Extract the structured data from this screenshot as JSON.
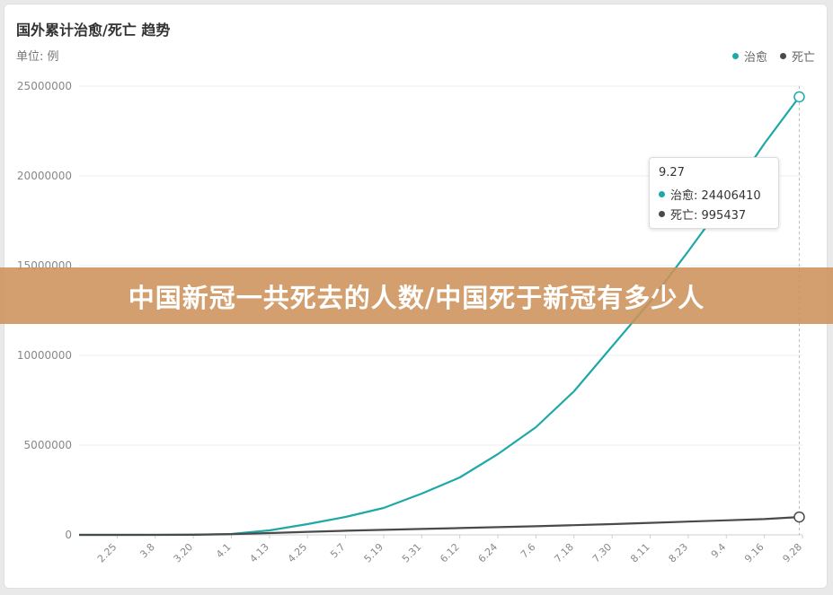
{
  "title": "国外累计治愈/死亡 趋势",
  "unit_label": "单位: 例",
  "banner_text": "中国新冠一共死去的人数/中国死于新冠有多少人",
  "legend": [
    {
      "name": "治愈",
      "color": "#1fa8a8"
    },
    {
      "name": "死亡",
      "color": "#4a4a4a"
    }
  ],
  "tooltip": {
    "date": "9.27",
    "recovered_text": "治愈: 24406410",
    "deaths_text": "死亡: 995437"
  },
  "chart_data": {
    "type": "line",
    "title": "国外累计治愈/死亡 趋势",
    "ylabel": "单位: 例",
    "ylim": [
      0,
      25000000
    ],
    "y_ticks": [
      0,
      5000000,
      10000000,
      15000000,
      20000000,
      25000000
    ],
    "y_tick_labels": [
      "0",
      "5000000",
      "10000000",
      "15000000",
      "20000000",
      "25000000"
    ],
    "x_tick_labels": [
      "2.25",
      "3.8",
      "3.20",
      "4.1",
      "4.13",
      "4.25",
      "5.7",
      "5.19",
      "5.31",
      "6.12",
      "6.24",
      "7.6",
      "7.18",
      "7.30",
      "8.11",
      "8.23",
      "9.4",
      "9.16",
      "9.28"
    ],
    "grid": true,
    "legend_position": "top-right",
    "series": [
      {
        "name": "治愈",
        "color": "#1fa8a8",
        "points": [
          [
            "2.13",
            0
          ],
          [
            "2.25",
            0
          ],
          [
            "3.8",
            2000
          ],
          [
            "3.20",
            12000
          ],
          [
            "4.1",
            50000
          ],
          [
            "4.13",
            250000
          ],
          [
            "4.25",
            600000
          ],
          [
            "5.7",
            1000000
          ],
          [
            "5.19",
            1500000
          ],
          [
            "5.31",
            2300000
          ],
          [
            "6.12",
            3200000
          ],
          [
            "6.24",
            4500000
          ],
          [
            "7.6",
            6000000
          ],
          [
            "7.18",
            8000000
          ],
          [
            "7.30",
            10500000
          ],
          [
            "8.11",
            13000000
          ],
          [
            "8.23",
            15800000
          ],
          [
            "9.4",
            18700000
          ],
          [
            "9.16",
            21800000
          ],
          [
            "9.27",
            24406410
          ]
        ]
      },
      {
        "name": "死亡",
        "color": "#4a4a4a",
        "points": [
          [
            "2.13",
            0
          ],
          [
            "2.25",
            0
          ],
          [
            "3.8",
            500
          ],
          [
            "3.20",
            8000
          ],
          [
            "4.1",
            40000
          ],
          [
            "4.13",
            100000
          ],
          [
            "4.25",
            170000
          ],
          [
            "5.7",
            230000
          ],
          [
            "5.19",
            280000
          ],
          [
            "5.31",
            330000
          ],
          [
            "6.12",
            380000
          ],
          [
            "6.24",
            430000
          ],
          [
            "7.6",
            480000
          ],
          [
            "7.18",
            540000
          ],
          [
            "7.30",
            600000
          ],
          [
            "8.11",
            670000
          ],
          [
            "8.23",
            740000
          ],
          [
            "9.4",
            810000
          ],
          [
            "9.16",
            880000
          ],
          [
            "9.27",
            995437
          ]
        ]
      }
    ]
  }
}
